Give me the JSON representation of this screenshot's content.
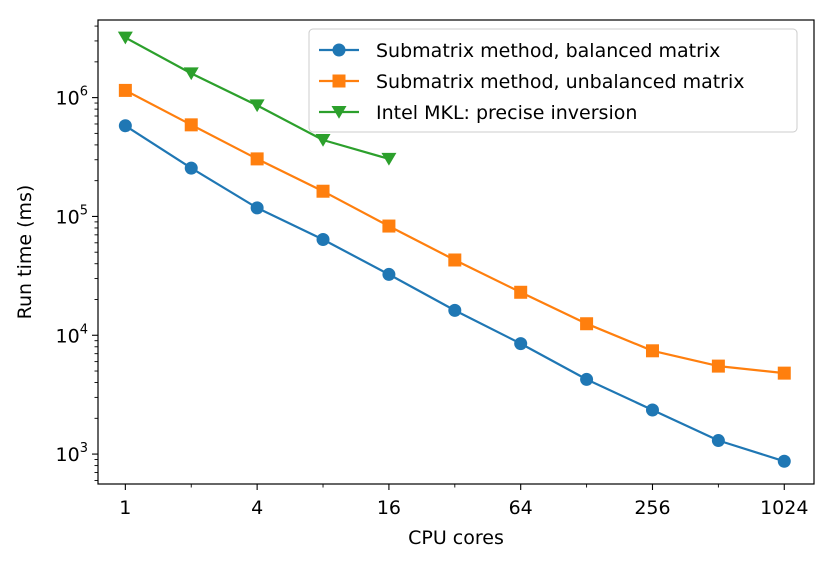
{
  "chart_data": {
    "type": "line",
    "title": "",
    "xlabel": "CPU cores",
    "ylabel": "Run time (ms)",
    "xscale": "log2",
    "yscale": "log10",
    "xlim": [
      0.75,
      1400
    ],
    "ylim": [
      560,
      4500000
    ],
    "x_ticks": [
      {
        "value": 1,
        "label": "1"
      },
      {
        "value": 4,
        "label": "4"
      },
      {
        "value": 16,
        "label": "16"
      },
      {
        "value": 64,
        "label": "64"
      },
      {
        "value": 256,
        "label": "256"
      },
      {
        "value": 1024,
        "label": "1024"
      }
    ],
    "y_ticks": [
      {
        "value": 1000,
        "base": "10",
        "exp": "3"
      },
      {
        "value": 10000,
        "base": "10",
        "exp": "4"
      },
      {
        "value": 100000,
        "base": "10",
        "exp": "5"
      },
      {
        "value": 1000000,
        "base": "10",
        "exp": "6"
      }
    ],
    "legend_position": "top-right",
    "grid": false,
    "series": [
      {
        "name": "Submatrix method, balanced matrix",
        "color": "#1f77b4",
        "marker": "circle",
        "x": [
          1,
          2,
          4,
          8,
          16,
          32,
          64,
          128,
          256,
          512,
          1024
        ],
        "values": [
          580000,
          255000,
          118000,
          64000,
          32500,
          16200,
          8500,
          4250,
          2350,
          1300,
          870
        ]
      },
      {
        "name": "Submatrix method, unbalanced matrix",
        "color": "#ff7f0e",
        "marker": "square",
        "x": [
          1,
          2,
          4,
          8,
          16,
          32,
          64,
          128,
          256,
          512,
          1024
        ],
        "values": [
          1150000,
          590000,
          305000,
          163000,
          83000,
          43000,
          23000,
          12500,
          7400,
          5500,
          4800
        ]
      },
      {
        "name": "Intel MKL: precise inversion",
        "color": "#2ca02c",
        "marker": "triangle-down",
        "x": [
          1,
          2,
          4,
          8,
          16
        ],
        "values": [
          3200000,
          1600000,
          860000,
          440000,
          305000
        ]
      }
    ]
  }
}
